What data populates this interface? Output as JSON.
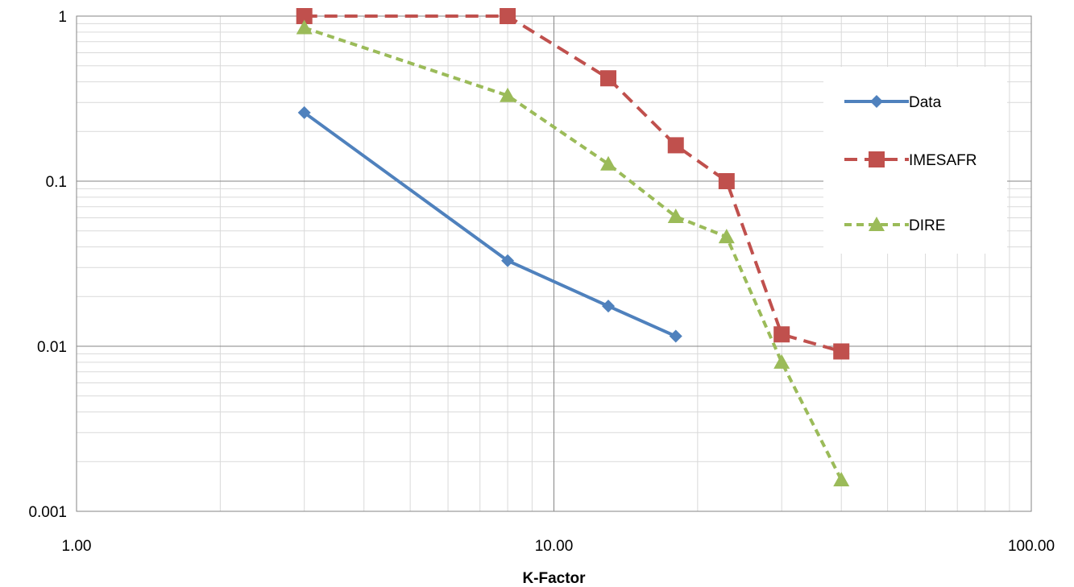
{
  "chart_data": {
    "type": "line",
    "xscale": "log",
    "yscale": "log",
    "xlim": [
      1,
      100
    ],
    "ylim": [
      0.001,
      1
    ],
    "x_tick_labels": [
      "1.00",
      "10.00",
      "100.00"
    ],
    "y_tick_labels": [
      "0.001",
      "0.01",
      "0.1",
      "1"
    ],
    "xlabel": "K-Factor",
    "ylabel": "",
    "grid": true,
    "legend_position": "right",
    "series": [
      {
        "name": "Data",
        "color": "#4F81BD",
        "marker": "diamond",
        "line_style": "solid",
        "x": [
          3,
          8,
          13,
          18
        ],
        "y": [
          0.26,
          0.033,
          0.0175,
          0.0115
        ]
      },
      {
        "name": "IMESAFR",
        "color": "#C0504D",
        "marker": "square",
        "line_style": "dashed",
        "x": [
          3,
          8,
          13,
          18,
          23,
          30,
          40
        ],
        "y": [
          1,
          1,
          0.42,
          0.165,
          0.1,
          0.0118,
          0.0093
        ]
      },
      {
        "name": "DIRE",
        "color": "#9BBB59",
        "marker": "triangle",
        "line_style": "dashed",
        "x": [
          3,
          8,
          13,
          18,
          23,
          30,
          40
        ],
        "y": [
          0.85,
          0.33,
          0.127,
          0.061,
          0.046,
          0.008,
          0.00155
        ]
      }
    ]
  }
}
